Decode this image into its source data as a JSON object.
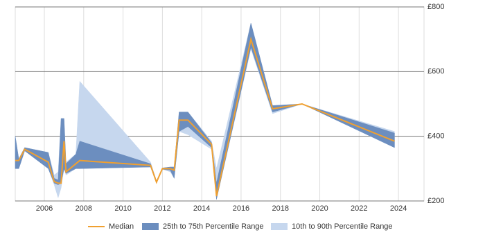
{
  "chart_data": {
    "type": "range-line",
    "x": [
      2004.52,
      2004.7,
      2005.0,
      2006.2,
      2006.5,
      2006.7,
      2006.85,
      2007.0,
      2007.1,
      2007.6,
      2007.8,
      2011.4,
      2011.7,
      2012.0,
      2012.4,
      2012.6,
      2012.85,
      2013.3,
      2014.5,
      2014.75,
      2016.5,
      2017.6,
      2019.1,
      2023.8
    ],
    "series": [
      {
        "name": "10th to 90th Percentile Range",
        "color": "#c6d7ee",
        "lower": [
          300,
          300,
          355,
          300,
          250,
          210,
          240,
          300,
          280,
          300,
          300,
          305,
          255,
          298,
          290,
          270,
          415,
          405,
          360,
          205,
          670,
          470,
          500,
          365
        ],
        "upper": [
          400,
          330,
          365,
          350,
          280,
          290,
          455,
          455,
          320,
          345,
          570,
          320,
          262,
          302,
          305,
          305,
          475,
          475,
          385,
          300,
          750,
          495,
          500,
          415
        ]
      },
      {
        "name": "25th to 75th Percentile Range",
        "color": "#6c8ebf",
        "lower": [
          300,
          300,
          355,
          300,
          255,
          250,
          255,
          300,
          285,
          300,
          300,
          305,
          255,
          298,
          295,
          270,
          415,
          430,
          365,
          205,
          675,
          475,
          500,
          365
        ],
        "upper": [
          400,
          330,
          365,
          350,
          270,
          265,
          455,
          455,
          315,
          345,
          385,
          315,
          262,
          302,
          305,
          305,
          475,
          475,
          380,
          255,
          750,
          495,
          500,
          410
        ]
      },
      {
        "name": "Median",
        "color": "#f0a030",
        "values": [
          325,
          325,
          360,
          320,
          260,
          255,
          255,
          385,
          290,
          315,
          325,
          310,
          258,
          300,
          300,
          295,
          450,
          450,
          375,
          215,
          700,
          485,
          500,
          385
        ]
      }
    ],
    "xlim": [
      2004.52,
      2025.3
    ],
    "xticks": [
      2006,
      2008,
      2010,
      2012,
      2014,
      2016,
      2018,
      2020,
      2022,
      2024
    ],
    "ylim": [
      200,
      800
    ],
    "yticks": [
      {
        "value": 200,
        "label": "£200"
      },
      {
        "value": 400,
        "label": "£400"
      },
      {
        "value": 600,
        "label": "£600"
      },
      {
        "value": 800,
        "label": "£800"
      }
    ],
    "grid": true
  }
}
